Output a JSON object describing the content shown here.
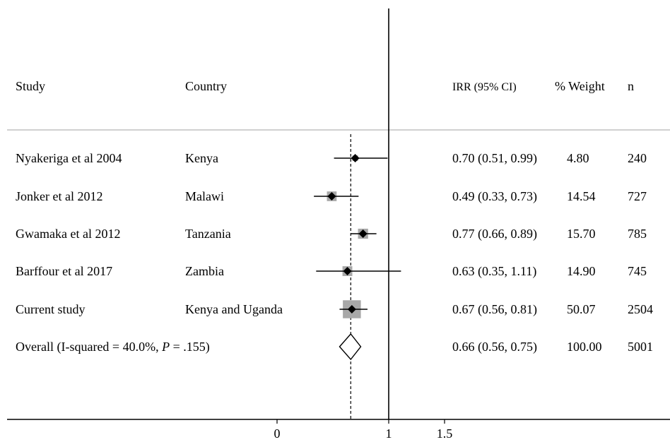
{
  "chart_data": {
    "type": "forest",
    "headers": {
      "study": "Study",
      "country": "Country",
      "irr": "IRR (95% CI)",
      "weight": "% Weight",
      "n": "n"
    },
    "studies": [
      {
        "study": "Nyakeriga et al 2004",
        "country": "Kenya",
        "irr": 0.7,
        "lo": 0.51,
        "hi": 0.99,
        "irr_text": "0.70 (0.51, 0.99)",
        "weight": 4.8,
        "weight_text": "4.80",
        "n": "240"
      },
      {
        "study": "Jonker et al 2012",
        "country": "Malawi",
        "irr": 0.49,
        "lo": 0.33,
        "hi": 0.73,
        "irr_text": "0.49 (0.33, 0.73)",
        "weight": 14.54,
        "weight_text": "14.54",
        "n": "727"
      },
      {
        "study": "Gwamaka et al 2012",
        "country": "Tanzania",
        "irr": 0.77,
        "lo": 0.66,
        "hi": 0.89,
        "irr_text": "0.77 (0.66, 0.89)",
        "weight": 15.7,
        "weight_text": "15.70",
        "n": "785"
      },
      {
        "study": "Barffour et al 2017",
        "country": "Zambia",
        "irr": 0.63,
        "lo": 0.35,
        "hi": 1.11,
        "irr_text": "0.63 (0.35, 1.11)",
        "weight": 14.9,
        "weight_text": "14.90",
        "n": "745"
      },
      {
        "study": "Current study",
        "country": "Kenya and Uganda",
        "irr": 0.67,
        "lo": 0.56,
        "hi": 0.81,
        "irr_text": "0.67 (0.56, 0.81)",
        "weight": 50.07,
        "weight_text": "50.07",
        "n": "2504"
      }
    ],
    "overall": {
      "label_prefix": "Overall  (I-squared = 40.0%, ",
      "label_p": "P",
      "label_suffix": " = .155)",
      "irr": 0.66,
      "lo": 0.56,
      "hi": 0.75,
      "irr_text": "0.66 (0.56, 0.75)",
      "weight_text": "100.00",
      "n": "5001"
    },
    "null_line": 1,
    "xticks": [
      {
        "value": 0,
        "label": "0"
      },
      {
        "value": 1,
        "label": "1"
      },
      {
        "value": 1.5,
        "label": "1.5"
      }
    ]
  }
}
